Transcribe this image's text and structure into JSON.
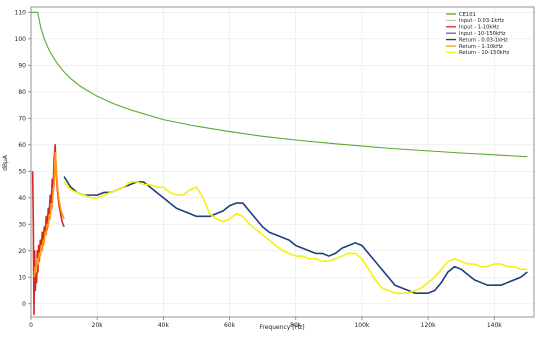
{
  "chart_data": {
    "type": "line",
    "xlabel": "Frequency [Hz]",
    "ylabel": "dBµA",
    "xlim": [
      0,
      152000
    ],
    "ylim": [
      -5,
      112
    ],
    "x_ticks": [
      0,
      20000,
      40000,
      60000,
      80000,
      100000,
      120000,
      140000
    ],
    "x_tick_labels": [
      "0",
      "20k",
      "40k",
      "60k",
      "80k",
      "100k",
      "120k",
      "140k"
    ],
    "y_ticks": [
      0,
      10,
      20,
      30,
      40,
      50,
      60,
      70,
      80,
      90,
      100,
      110
    ],
    "y_tick_labels": [
      "0",
      "10",
      "20",
      "30",
      "40",
      "50",
      "60",
      "70",
      "80",
      "90",
      "100",
      "110"
    ],
    "grid": true,
    "legend_position": "top-right",
    "series": [
      {
        "name": "CE101",
        "color": "#5aa832",
        "x": [
          0,
          2000,
          3000,
          4000,
          5000,
          6000,
          8000,
          10000,
          12000,
          15000,
          20000,
          25000,
          30000,
          40000,
          50000,
          60000,
          70000,
          80000,
          90000,
          100000,
          110000,
          120000,
          130000,
          140000,
          150000
        ],
        "y": [
          110,
          110,
          104,
          100,
          97,
          94.5,
          90.6,
          87.5,
          85,
          82,
          78.3,
          75.5,
          73.2,
          69.5,
          67,
          65,
          63.2,
          61.8,
          60.6,
          59.5,
          58.5,
          57.7,
          56.9,
          56.2,
          55.5
        ]
      },
      {
        "name": "Input - 0.03-1kHz",
        "color": "#c8c8c8",
        "x": [],
        "y": []
      },
      {
        "name": "Input - 1-10kHz",
        "color": "#d62728",
        "x": [
          500,
          700,
          900,
          1100,
          1300,
          1500,
          1700,
          1900,
          2100,
          2300,
          2500,
          2800,
          3100,
          3400,
          3700,
          4000,
          4300,
          4600,
          4900,
          5200,
          5500,
          5800,
          6100,
          6400,
          6700,
          7000,
          7300,
          7600,
          7900,
          8200,
          8500,
          8800,
          9100,
          9400,
          9700,
          10000
        ],
        "y": [
          50,
          30,
          -4,
          20,
          5,
          14,
          8,
          20,
          12,
          22,
          16,
          24,
          20,
          27,
          22,
          29,
          26,
          33,
          28,
          36,
          34,
          41,
          38,
          47,
          44,
          55,
          60,
          50,
          44,
          40,
          37,
          35,
          33,
          31,
          30,
          29
        ]
      },
      {
        "name": "Input - 10-150kHz",
        "color": "#7b4fa8",
        "x": [],
        "y": []
      },
      {
        "name": "Return - 0.03-1kHz",
        "color": "#1f3f7a",
        "x": [
          10000,
          12000,
          14000,
          16000,
          18000,
          20000,
          22000,
          24000,
          26000,
          28000,
          30000,
          32000,
          34000,
          36000,
          38000,
          40000,
          42000,
          44000,
          46000,
          48000,
          50000,
          52000,
          54000,
          56000,
          58000,
          60000,
          62000,
          64000,
          66000,
          68000,
          70000,
          72000,
          74000,
          76000,
          78000,
          80000,
          82000,
          84000,
          86000,
          88000,
          90000,
          92000,
          94000,
          96000,
          98000,
          100000,
          102000,
          104000,
          106000,
          108000,
          110000,
          112000,
          114000,
          116000,
          118000,
          120000,
          122000,
          124000,
          126000,
          128000,
          130000,
          132000,
          134000,
          136000,
          138000,
          140000,
          142000,
          144000,
          146000,
          148000,
          150000
        ],
        "y": [
          48,
          44,
          42,
          41,
          41,
          41,
          42,
          42,
          43,
          44,
          45,
          46,
          46,
          44,
          42,
          40,
          38,
          36,
          35,
          34,
          33,
          33,
          33,
          34,
          35,
          37,
          38,
          38,
          35,
          32,
          29,
          27,
          26,
          25,
          24,
          22,
          21,
          20,
          19,
          19,
          18,
          19,
          21,
          22,
          23,
          22,
          19,
          16,
          13,
          10,
          7,
          6,
          5,
          4,
          4,
          4,
          5,
          8,
          12,
          14,
          13,
          11,
          9,
          8,
          7,
          7,
          7,
          8,
          9,
          10,
          12
        ]
      },
      {
        "name": "Return - 1-10kHz",
        "color": "#ff9a1a",
        "x": [
          1000,
          1300,
          1600,
          1900,
          2200,
          2500,
          2800,
          3100,
          3400,
          3700,
          4000,
          4300,
          4600,
          4900,
          5200,
          5500,
          5800,
          6100,
          6400,
          6700,
          7000,
          7300,
          7600,
          7900,
          8200,
          8500,
          8800,
          9100,
          9400,
          9700,
          10000
        ],
        "y": [
          10,
          14,
          12,
          17,
          15,
          19,
          18,
          22,
          20,
          24,
          23,
          27,
          26,
          30,
          29,
          33,
          32,
          37,
          36,
          42,
          45,
          57,
          52,
          46,
          42,
          39,
          37,
          35,
          34,
          33,
          32
        ]
      },
      {
        "name": "Return - 10-150kHz",
        "color": "#f2f20f",
        "x": [
          10000,
          12000,
          14000,
          16000,
          18000,
          20000,
          22000,
          24000,
          26000,
          28000,
          30000,
          32000,
          34000,
          36000,
          38000,
          40000,
          42000,
          44000,
          46000,
          48000,
          50000,
          52000,
          54000,
          56000,
          58000,
          60000,
          62000,
          64000,
          66000,
          68000,
          70000,
          72000,
          74000,
          76000,
          78000,
          80000,
          82000,
          84000,
          86000,
          88000,
          90000,
          92000,
          94000,
          96000,
          98000,
          100000,
          102000,
          104000,
          106000,
          108000,
          110000,
          112000,
          114000,
          116000,
          118000,
          120000,
          122000,
          124000,
          126000,
          128000,
          130000,
          132000,
          134000,
          136000,
          138000,
          140000,
          142000,
          144000,
          146000,
          148000,
          150000
        ],
        "y": [
          46,
          43,
          42,
          41,
          40,
          40,
          41,
          42,
          43,
          44,
          46,
          46,
          45,
          45,
          44,
          44,
          42,
          41,
          41,
          43,
          44,
          40,
          34,
          32,
          31,
          32,
          34,
          33,
          30,
          28,
          26,
          24,
          22,
          20,
          19,
          18,
          18,
          17,
          17,
          16,
          16,
          17,
          18,
          19,
          19,
          17,
          13,
          9,
          6,
          5,
          4,
          4,
          4,
          5,
          6,
          8,
          10,
          13,
          16,
          17,
          16,
          15,
          15,
          14,
          14,
          15,
          15,
          14,
          14,
          13,
          13
        ]
      }
    ]
  }
}
